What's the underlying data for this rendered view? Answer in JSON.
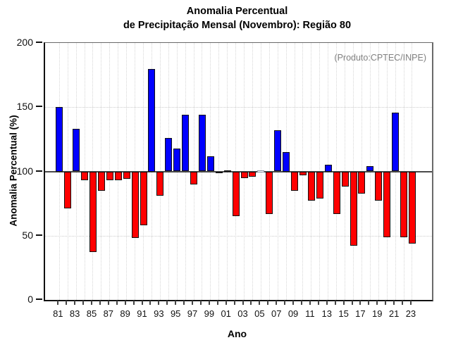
{
  "chart_data": {
    "type": "bar",
    "title_line1": "Anomalia Percentual",
    "title_line2": "de Precipitação Mensal (Novembro): Região 80",
    "annotation": "(Produto:CPTEC/INPE)",
    "xlabel": "Ano",
    "ylabel": "Anomalia Percentual (%)",
    "ylim": [
      0,
      200
    ],
    "yticks": [
      0,
      50,
      100,
      150,
      200
    ],
    "baseline": 100,
    "grid_hlines": [
      50,
      150
    ],
    "grid": "dotted vertical line per year, dotted horizontal at 50 and 150, solid line at 100",
    "categories": [
      "81",
      "82",
      "83",
      "84",
      "85",
      "86",
      "87",
      "88",
      "89",
      "90",
      "91",
      "92",
      "93",
      "94",
      "95",
      "96",
      "97",
      "98",
      "99",
      "00",
      "01",
      "02",
      "03",
      "04",
      "05",
      "06",
      "07",
      "08",
      "09",
      "10",
      "11",
      "12",
      "13",
      "14",
      "15",
      "16",
      "17",
      "18",
      "19",
      "20",
      "21",
      "22",
      "23"
    ],
    "values": [
      150,
      71,
      133,
      93,
      37,
      85,
      93,
      93,
      94,
      48,
      58,
      180,
      81,
      126,
      118,
      144,
      90,
      144,
      112,
      99,
      101,
      65,
      95,
      96,
      100,
      67,
      132,
      115,
      85,
      97,
      77,
      79,
      105,
      67,
      88,
      42,
      83,
      104,
      77,
      49,
      146,
      49,
      44
    ],
    "colors": {
      "above_baseline": "#0000ff",
      "below_baseline": "#ff0000",
      "neutral": "#ffffff",
      "annotation_text": "#808080",
      "grid": "#d6d6d6",
      "axis": "#111111",
      "bar_border": "#111111"
    }
  }
}
